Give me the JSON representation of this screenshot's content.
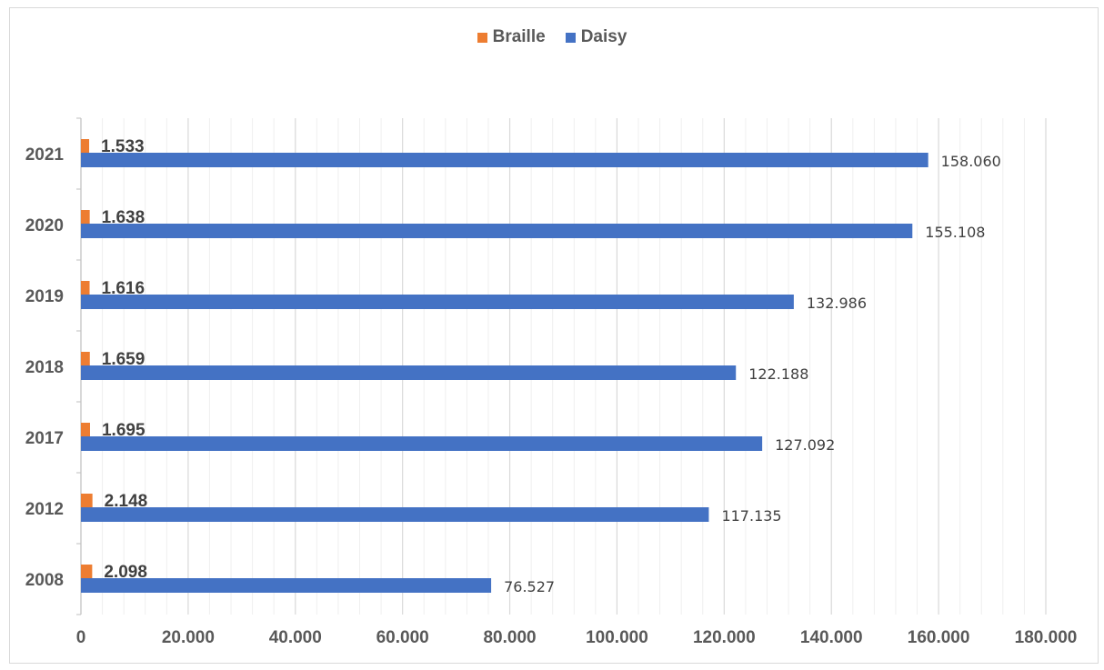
{
  "chart_data": {
    "type": "bar",
    "orientation": "horizontal",
    "categories": [
      "2021",
      "2020",
      "2019",
      "2018",
      "2017",
      "2012",
      "2008"
    ],
    "series": [
      {
        "name": "Braille",
        "color": "#ED7D31",
        "values": [
          1533,
          1638,
          1616,
          1659,
          1695,
          2148,
          2098
        ],
        "labels": [
          "1.533",
          "1.638",
          "1.616",
          "1.659",
          "1.695",
          "2.148",
          "2.098"
        ]
      },
      {
        "name": "Daisy",
        "color": "#4472C4",
        "values": [
          158060,
          155108,
          132986,
          122188,
          127092,
          117135,
          76527
        ],
        "labels": [
          "158.060",
          "155.108",
          "132.986",
          "122.188",
          "127.092",
          "117.135",
          "76.527"
        ]
      }
    ],
    "xlim": [
      0,
      180000
    ],
    "xticks": [
      0,
      20000,
      40000,
      60000,
      80000,
      100000,
      120000,
      140000,
      160000,
      180000
    ],
    "xtick_labels": [
      "0",
      "20.000",
      "40.000",
      "60.000",
      "80.000",
      "100.000",
      "120.000",
      "140.000",
      "160.000",
      "180.000"
    ],
    "grid": true,
    "legend_position": "top"
  }
}
